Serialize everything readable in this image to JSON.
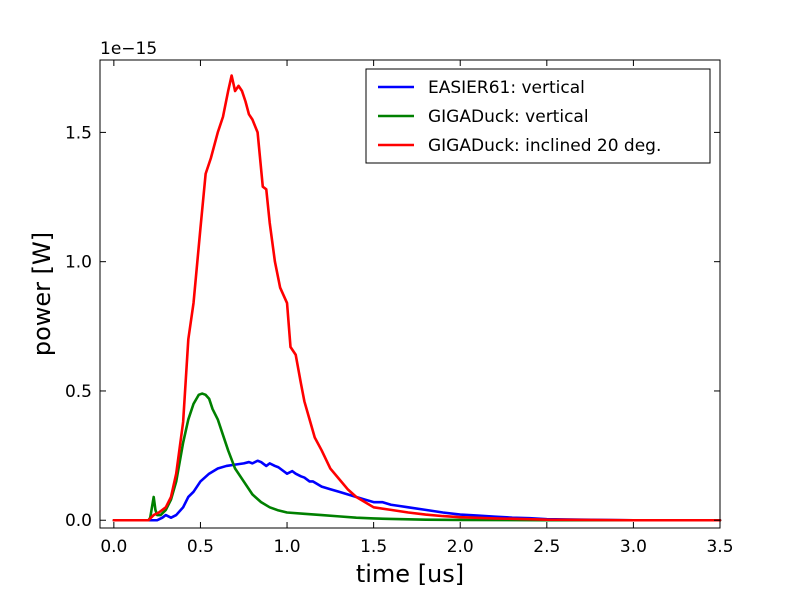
{
  "chart_data": {
    "type": "line",
    "offset_text": "1e−15",
    "xlabel": "time [us]",
    "ylabel": "power [W]",
    "xlim": [
      -0.08,
      3.5
    ],
    "ylim": [
      -0.03,
      1.78
    ],
    "xticks": [
      0.0,
      0.5,
      1.0,
      1.5,
      2.0,
      2.5,
      3.0,
      3.5
    ],
    "xtick_labels": [
      "0.0",
      "0.5",
      "1.0",
      "1.5",
      "2.0",
      "2.5",
      "3.0",
      "3.5"
    ],
    "yticks": [
      0.0,
      0.5,
      1.0,
      1.5
    ],
    "ytick_labels": [
      "0.0",
      "0.5",
      "1.0",
      "1.5"
    ],
    "grid": false,
    "legend_position": "top-right",
    "series": [
      {
        "name": "EASIER61: vertical",
        "color": "#0000ff",
        "x": [
          0.0,
          0.2,
          0.25,
          0.28,
          0.3,
          0.33,
          0.36,
          0.4,
          0.43,
          0.46,
          0.5,
          0.55,
          0.6,
          0.65,
          0.7,
          0.75,
          0.78,
          0.8,
          0.83,
          0.85,
          0.88,
          0.9,
          0.93,
          0.95,
          0.98,
          1.0,
          1.03,
          1.05,
          1.08,
          1.1,
          1.13,
          1.15,
          1.2,
          1.25,
          1.3,
          1.35,
          1.4,
          1.45,
          1.5,
          1.55,
          1.6,
          1.65,
          1.7,
          1.8,
          1.9,
          2.0,
          2.1,
          2.2,
          2.3,
          2.4,
          2.5,
          2.7,
          3.0,
          3.5
        ],
        "y": [
          0.0,
          0.0,
          0.0,
          0.01,
          0.02,
          0.01,
          0.02,
          0.05,
          0.09,
          0.11,
          0.15,
          0.18,
          0.2,
          0.21,
          0.215,
          0.22,
          0.225,
          0.22,
          0.23,
          0.225,
          0.21,
          0.22,
          0.21,
          0.205,
          0.19,
          0.18,
          0.19,
          0.18,
          0.17,
          0.165,
          0.15,
          0.15,
          0.13,
          0.12,
          0.11,
          0.1,
          0.09,
          0.08,
          0.07,
          0.07,
          0.06,
          0.055,
          0.05,
          0.04,
          0.03,
          0.022,
          0.018,
          0.014,
          0.01,
          0.008,
          0.004,
          0.002,
          0.0,
          0.0
        ]
      },
      {
        "name": "GIGADuck: vertical",
        "color": "#008000",
        "x": [
          0.0,
          0.2,
          0.21,
          0.22,
          0.23,
          0.24,
          0.25,
          0.27,
          0.3,
          0.33,
          0.36,
          0.4,
          0.43,
          0.46,
          0.49,
          0.51,
          0.53,
          0.55,
          0.57,
          0.6,
          0.63,
          0.66,
          0.7,
          0.75,
          0.8,
          0.85,
          0.9,
          0.95,
          1.0,
          1.1,
          1.2,
          1.3,
          1.4,
          1.5,
          1.6,
          1.8,
          2.0,
          2.5,
          3.0,
          3.5
        ],
        "y": [
          0.0,
          0.0,
          0.01,
          0.05,
          0.09,
          0.04,
          0.02,
          0.02,
          0.04,
          0.08,
          0.15,
          0.3,
          0.39,
          0.45,
          0.485,
          0.49,
          0.485,
          0.47,
          0.43,
          0.39,
          0.33,
          0.27,
          0.2,
          0.15,
          0.1,
          0.07,
          0.05,
          0.038,
          0.03,
          0.025,
          0.02,
          0.015,
          0.01,
          0.007,
          0.005,
          0.002,
          0.001,
          0.0,
          0.0,
          0.0
        ]
      },
      {
        "name": "GIGADuck: inclined 20 deg.",
        "color": "#ff0000",
        "x": [
          0.0,
          0.2,
          0.23,
          0.26,
          0.3,
          0.33,
          0.36,
          0.4,
          0.43,
          0.46,
          0.5,
          0.53,
          0.56,
          0.6,
          0.63,
          0.66,
          0.68,
          0.7,
          0.72,
          0.74,
          0.76,
          0.78,
          0.8,
          0.83,
          0.86,
          0.88,
          0.9,
          0.93,
          0.96,
          1.0,
          1.02,
          1.05,
          1.08,
          1.1,
          1.13,
          1.16,
          1.2,
          1.25,
          1.3,
          1.35,
          1.4,
          1.45,
          1.5,
          1.6,
          1.7,
          1.8,
          1.9,
          2.0,
          2.2,
          2.4,
          2.5,
          3.0,
          3.5
        ],
        "y": [
          0.0,
          0.0,
          0.02,
          0.03,
          0.05,
          0.09,
          0.18,
          0.38,
          0.7,
          0.84,
          1.13,
          1.34,
          1.4,
          1.5,
          1.56,
          1.66,
          1.72,
          1.66,
          1.68,
          1.66,
          1.62,
          1.57,
          1.55,
          1.5,
          1.29,
          1.28,
          1.15,
          1.0,
          0.9,
          0.84,
          0.67,
          0.64,
          0.53,
          0.46,
          0.39,
          0.32,
          0.27,
          0.2,
          0.16,
          0.12,
          0.09,
          0.07,
          0.05,
          0.04,
          0.03,
          0.022,
          0.016,
          0.012,
          0.007,
          0.004,
          0.002,
          0.0,
          0.0
        ]
      }
    ]
  }
}
